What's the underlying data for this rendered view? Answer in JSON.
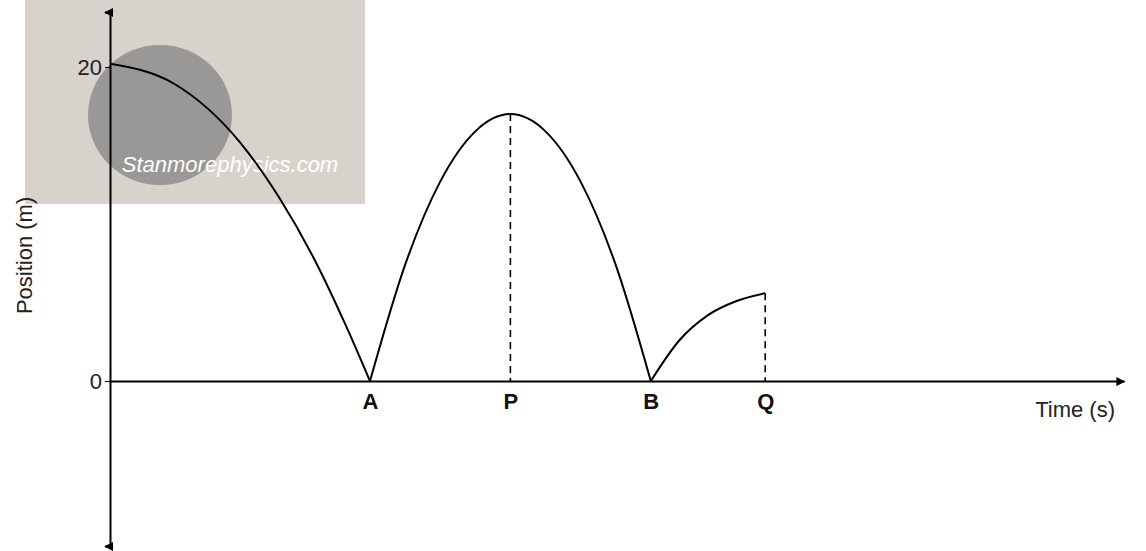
{
  "chart_data": {
    "type": "line",
    "x_label": "Time (s)",
    "y_label": "Position (m)",
    "watermark": "Stanmorephysics.com",
    "color": "#000000",
    "xlim": [
      0,
      7.8
    ],
    "ylim": [
      -10.5,
      23.5
    ],
    "xticks": [
      {
        "value": 2.0,
        "label": "A"
      },
      {
        "value": 3.08,
        "label": "P"
      },
      {
        "value": 4.16,
        "label": "B"
      },
      {
        "value": 5.04,
        "label": "Q"
      }
    ],
    "yticks": [
      0,
      20
    ],
    "series": [
      {
        "x": [
          0,
          0.5,
          1.0,
          1.3,
          1.6,
          1.8,
          2.0
        ],
        "values": [
          20.2,
          18.9,
          15.2,
          11.7,
          7.3,
          3.8,
          0
        ]
      },
      {
        "x": [
          2.0,
          2.27,
          2.54,
          2.81,
          3.08,
          3.35,
          3.62,
          3.89,
          4.16
        ],
        "values": [
          0,
          7.4,
          12.7,
          15.9,
          17.0,
          15.9,
          12.7,
          7.4,
          0
        ]
      },
      {
        "x": [
          4.16,
          4.38,
          4.6,
          4.82,
          5.04
        ],
        "values": [
          0,
          2.6,
          4.2,
          5.1,
          5.6
        ]
      }
    ],
    "drop_lines": [
      {
        "x": 3.08,
        "y": 17.0
      },
      {
        "x": 5.04,
        "y": 5.6
      }
    ],
    "line_style": "solid"
  }
}
